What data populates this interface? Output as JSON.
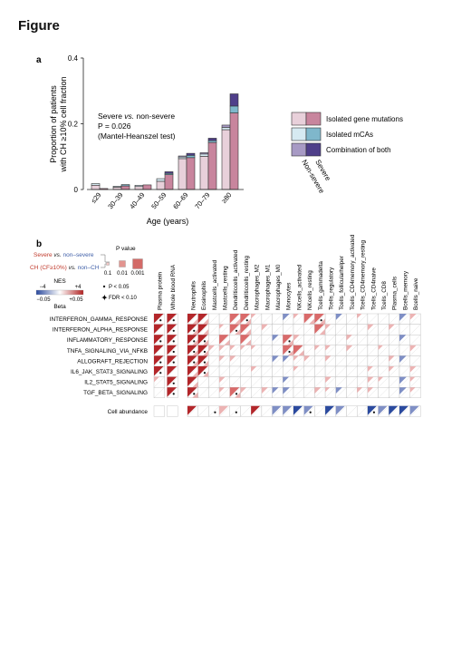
{
  "figure_title": "Figure",
  "panel_a": {
    "letter": "a",
    "annotation": {
      "line1_a": "Severe ",
      "line1_vs": "vs.",
      "line1_b": " non-severe",
      "line2": "P = 0.026",
      "line3": "(Mantel-Heanszel test)"
    },
    "legend": {
      "items": [
        {
          "label": "Isolated gene mutations",
          "light": "#e8d0da",
          "dark": "#c8859d"
        },
        {
          "label": "Isolated mCAs",
          "light": "#d6eaf2",
          "dark": "#7fb7cb"
        },
        {
          "label": "Combination of both",
          "light": "#a79ac4",
          "dark": "#4f3f8a"
        }
      ],
      "col_non_severe": "Non-severe",
      "col_severe": "Severe"
    }
  },
  "chart_data": {
    "type": "bar",
    "title": "",
    "xlabel": "Age (years)",
    "ylabel_line1": "Proportion of patients",
    "ylabel_line2": "with CH ≥10% cell fraction",
    "ylim": [
      0,
      0.4
    ],
    "yticks": [
      "0",
      "0.2",
      "0.4"
    ],
    "categories": [
      "≤29",
      "30–39",
      "40–49",
      "50–59",
      "60–69",
      "70–79",
      "≥80"
    ],
    "stacked_groups": [
      "Non-severe",
      "Severe"
    ],
    "series": [
      {
        "name": "Isolated gene mutations",
        "non_severe": [
          0.013,
          0.007,
          0.009,
          0.025,
          0.094,
          0.101,
          0.182
        ],
        "severe": [
          0.003,
          0.011,
          0.014,
          0.045,
          0.097,
          0.143,
          0.233
        ]
      },
      {
        "name": "Isolated mCAs",
        "non_severe": [
          0.005,
          0.003,
          0.004,
          0.008,
          0.005,
          0.007,
          0.007
        ],
        "severe": [
          0.0,
          0.004,
          0.0,
          0.004,
          0.007,
          0.006,
          0.021
        ]
      },
      {
        "name": "Combination of both",
        "non_severe": [
          0.0,
          0.0,
          0.0,
          0.0,
          0.003,
          0.004,
          0.007
        ],
        "severe": [
          0.0,
          0.0,
          0.0,
          0.005,
          0.006,
          0.007,
          0.037
        ]
      }
    ],
    "grid": false,
    "legend_placement": "right"
  },
  "panel_b": {
    "letter": "b",
    "legend": {
      "severe": "Severe",
      "vs": "vs.",
      "non_severe": "non–severe",
      "ch": "CH (CF≥10%)",
      "non_ch": "non–CH",
      "pvalue_title": "P value",
      "pvalue_ticks": [
        "0.1",
        "0.01",
        "0.001"
      ],
      "nes_title": "NES",
      "nes_min": "−4",
      "nes_max": "+4",
      "beta_min": "−0.05",
      "beta_max": "+0.05",
      "beta_title": "Beta",
      "p_note": "P < 0.05",
      "fdr_note": "FDR < 0.10"
    },
    "columns": [
      "Plasma protein",
      "Whole blood RNA",
      "Neutrophils",
      "Eosinophils",
      "Mastcells_activated",
      "Mastcells_resting",
      "Dendriticcells_activated",
      "Dendriticcells_resting",
      "Macrophages_M2",
      "Macrophages_M1",
      "Macrophages_M0",
      "Monocytes",
      "NKcells_activated",
      "NKcells_resting",
      "Tcells_gammadelta",
      "Tcells_regulatory",
      "Tcells_follicularhelper",
      "Tcells_CD4memory_activated",
      "Tcells_CD4memory_resting",
      "Tcells_CD4naive",
      "Tcells_CD8",
      "Plasma_cells",
      "Bcells_memory",
      "Bcells_naive"
    ],
    "rows": [
      "INTERFERON_GAMMA_RESPONSE",
      "INTERFERON_ALPHA_RESPONSE",
      "INFLAMMATORY_RESPONSE",
      "TNFA_SIGNALING_VIA_NFKB",
      "ALLOGRAFT_REJECTION",
      "IL6_JAK_STAT3_SIGNALING",
      "IL2_STAT5_SIGNALING",
      "TGF_BETA_SIGNALING"
    ],
    "cell_abundance_label": "Cell abundance"
  }
}
